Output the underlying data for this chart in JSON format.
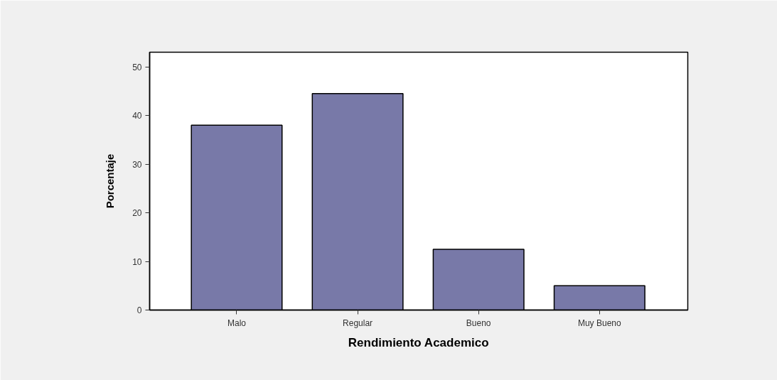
{
  "chart_data": {
    "type": "bar",
    "xlabel": "Rendimiento Academico",
    "ylabel": "Porcentaje",
    "categories": [
      "Malo",
      "Regular",
      "Bueno",
      "Muy Bueno"
    ],
    "values": [
      38,
      44.5,
      12.5,
      5
    ],
    "color": "#7879a8",
    "ylim": [
      0,
      53
    ],
    "yticks": [
      0,
      10,
      20,
      30,
      40,
      50
    ]
  }
}
